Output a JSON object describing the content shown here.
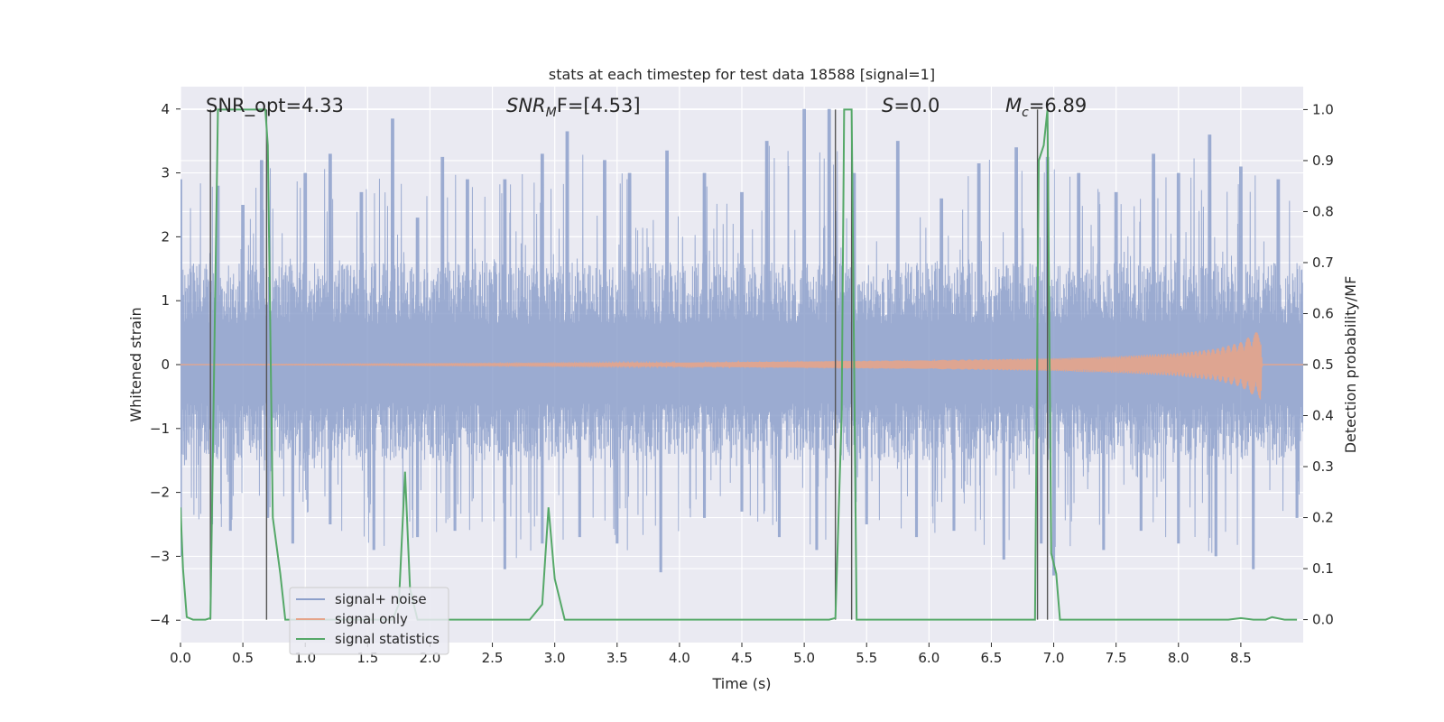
{
  "chart_data": {
    "type": "line",
    "title": "stats at each timestep for test data 18588 [signal=1]",
    "xlabel": "Time (s)",
    "ylabel_left": "Whitened strain",
    "ylabel_right": "Detection probability/MF",
    "xlim": [
      0.0,
      9.0
    ],
    "ylim_left": [
      -4.35,
      4.35
    ],
    "ylim_right": [
      -0.045,
      1.045
    ],
    "x_ticks": [
      "0.0",
      "0.5",
      "1.0",
      "1.5",
      "2.0",
      "2.5",
      "3.0",
      "3.5",
      "4.0",
      "4.5",
      "5.0",
      "5.5",
      "6.0",
      "6.5",
      "7.0",
      "7.5",
      "8.0",
      "8.5"
    ],
    "y_ticks_left": [
      "4",
      "3",
      "2",
      "1",
      "0",
      "−1",
      "−2",
      "−3",
      "−4"
    ],
    "y_ticks_right": [
      "1.0",
      "0.9",
      "0.8",
      "0.7",
      "0.6",
      "0.5",
      "0.4",
      "0.3",
      "0.2",
      "0.1",
      "0.0"
    ],
    "grid": true,
    "legend_placement": "lower-left",
    "annotations": {
      "snr_opt": "SNR_opt=4.33",
      "snr_mf_name": "SNR",
      "snr_mf_sub": "M",
      "snr_mf_rest": "F=[4.53]",
      "s_name": "S",
      "s_rest": "=0.0",
      "mc_name": "M",
      "mc_sub": "c",
      "mc_rest": "=6.89"
    },
    "series": [
      {
        "name": "signal+ noise",
        "color": "#8da0cb",
        "envelope": {
          "typical_upper": 1.6,
          "typical_lower": -1.5,
          "peaks": [
            [
              0.0,
              2.9
            ],
            [
              0.3,
              2.8
            ],
            [
              0.5,
              2.5
            ],
            [
              0.65,
              3.2
            ],
            [
              1.0,
              3.0
            ],
            [
              1.2,
              3.3
            ],
            [
              1.45,
              2.7
            ],
            [
              1.7,
              3.85
            ],
            [
              1.9,
              2.3
            ],
            [
              2.1,
              3.25
            ],
            [
              2.3,
              2.9
            ],
            [
              2.6,
              2.9
            ],
            [
              2.9,
              3.3
            ],
            [
              3.1,
              3.65
            ],
            [
              3.4,
              3.2
            ],
            [
              3.6,
              3.0
            ],
            [
              3.9,
              3.35
            ],
            [
              4.2,
              3.0
            ],
            [
              4.5,
              2.7
            ],
            [
              4.7,
              3.5
            ],
            [
              5.0,
              4.0
            ],
            [
              5.2,
              4.0
            ],
            [
              5.4,
              3.0
            ],
            [
              5.75,
              3.5
            ],
            [
              6.1,
              2.6
            ],
            [
              6.4,
              3.15
            ],
            [
              6.7,
              3.4
            ],
            [
              6.95,
              3.25
            ],
            [
              7.2,
              3.0
            ],
            [
              7.5,
              2.7
            ],
            [
              7.8,
              3.3
            ],
            [
              8.0,
              3.0
            ],
            [
              8.25,
              3.6
            ],
            [
              8.5,
              3.1
            ],
            [
              8.8,
              2.9
            ]
          ],
          "troughs": [
            [
              0.0,
              -3.0
            ],
            [
              0.25,
              -2.5
            ],
            [
              0.4,
              -2.6
            ],
            [
              0.7,
              -2.4
            ],
            [
              0.9,
              -2.8
            ],
            [
              1.2,
              -2.5
            ],
            [
              1.55,
              -2.9
            ],
            [
              1.9,
              -2.7
            ],
            [
              2.2,
              -2.6
            ],
            [
              2.6,
              -3.2
            ],
            [
              2.9,
              -2.8
            ],
            [
              3.2,
              -2.7
            ],
            [
              3.5,
              -2.8
            ],
            [
              3.85,
              -3.25
            ],
            [
              4.2,
              -2.4
            ],
            [
              4.5,
              -2.3
            ],
            [
              4.8,
              -2.7
            ],
            [
              5.1,
              -2.9
            ],
            [
              5.5,
              -2.5
            ],
            [
              5.9,
              -2.7
            ],
            [
              6.2,
              -2.6
            ],
            [
              6.6,
              -3.05
            ],
            [
              6.9,
              -2.8
            ],
            [
              7.0,
              -3.3
            ],
            [
              7.4,
              -2.9
            ],
            [
              7.7,
              -2.6
            ],
            [
              8.0,
              -2.8
            ],
            [
              8.3,
              -3.0
            ],
            [
              8.6,
              -3.2
            ],
            [
              8.95,
              -2.4
            ]
          ]
        }
      },
      {
        "name": "signal only",
        "color": "#e5a48a",
        "amplitude_envelope": [
          [
            0.0,
            0.0
          ],
          [
            4.0,
            0.03
          ],
          [
            5.0,
            0.05
          ],
          [
            6.0,
            0.07
          ],
          [
            7.0,
            0.1
          ],
          [
            7.5,
            0.13
          ],
          [
            8.0,
            0.18
          ],
          [
            8.3,
            0.25
          ],
          [
            8.5,
            0.35
          ],
          [
            8.6,
            0.48
          ],
          [
            8.66,
            0.55
          ],
          [
            8.67,
            0.0
          ],
          [
            9.0,
            0.0
          ]
        ]
      },
      {
        "name": "signal statistics",
        "color": "#55a868",
        "x": [
          0.0,
          0.02,
          0.05,
          0.1,
          0.2,
          0.24,
          0.3,
          0.36,
          0.5,
          0.68,
          0.7,
          0.74,
          0.8,
          0.84,
          1.0,
          1.2,
          1.5,
          1.7,
          1.75,
          1.8,
          1.84,
          1.9,
          2.0,
          2.2,
          2.5,
          2.8,
          2.9,
          2.95,
          3.0,
          3.08,
          3.2,
          3.5,
          4.0,
          4.5,
          5.0,
          5.2,
          5.25,
          5.3,
          5.32,
          5.38,
          5.42,
          5.5,
          6.0,
          6.5,
          6.85,
          6.88,
          6.92,
          6.95,
          6.98,
          7.02,
          7.05,
          7.5,
          8.0,
          8.4,
          8.5,
          8.6,
          8.7,
          8.75,
          8.85,
          8.95
        ],
        "y": [
          0.22,
          0.1,
          0.005,
          0.0,
          0.0,
          0.003,
          1.0,
          1.0,
          1.0,
          1.0,
          0.93,
          0.2,
          0.09,
          0.0,
          0.0,
          0.0,
          0.0,
          0.0,
          0.03,
          0.29,
          0.06,
          0.0,
          0.0,
          0.0,
          0.0,
          0.0,
          0.03,
          0.22,
          0.08,
          0.0,
          0.0,
          0.0,
          0.0,
          0.0,
          0.0,
          0.0,
          0.003,
          0.4,
          1.0,
          1.0,
          0.0,
          0.0,
          0.0,
          0.0,
          0.0,
          0.9,
          0.93,
          1.0,
          0.13,
          0.09,
          0.0,
          0.0,
          0.0,
          0.0,
          0.003,
          0.0,
          0.0,
          0.005,
          0.0,
          0.0
        ]
      }
    ],
    "vertical_markers": [
      0.24,
      0.69,
      5.25,
      5.38,
      6.87,
      6.95
    ]
  }
}
